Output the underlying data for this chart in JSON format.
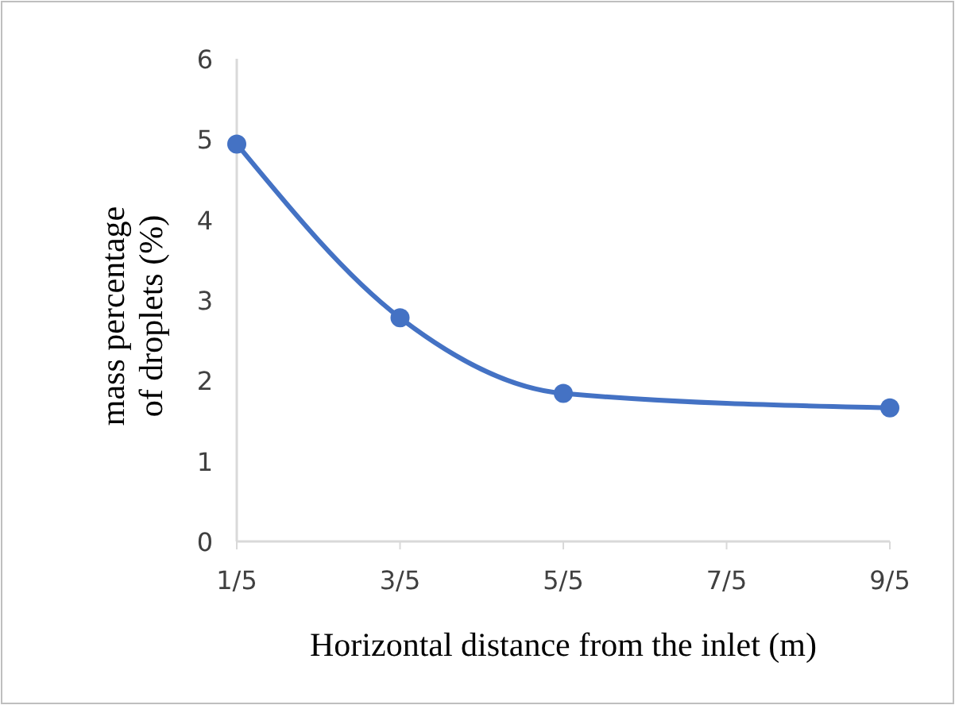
{
  "chart_data": {
    "type": "line",
    "xlabel": "Horizontal distance from the inlet (m)",
    "ylabel": "mass percentage\nof droplets (%)",
    "x": [
      0.2,
      0.6,
      1.0,
      1.8
    ],
    "series": [
      {
        "color": "#4472c4",
        "values": [
          4.94,
          2.78,
          1.84,
          1.66
        ]
      }
    ],
    "xlim": [
      0.2,
      1.8
    ],
    "xticks": [
      {
        "value": 0.2,
        "label": "1/5"
      },
      {
        "value": 0.6,
        "label": "3/5"
      },
      {
        "value": 1.0,
        "label": "5/5"
      },
      {
        "value": 1.4,
        "label": "7/5"
      },
      {
        "value": 1.8,
        "label": "9/5"
      }
    ],
    "ylim": [
      0,
      6
    ],
    "yticks": [
      0,
      1,
      2,
      3,
      4,
      5,
      6
    ],
    "grid": false,
    "marker": "circle",
    "line_style": "solid"
  }
}
